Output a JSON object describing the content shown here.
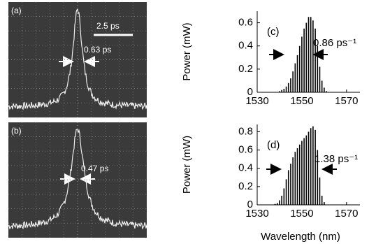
{
  "traces": [
    {
      "label": "(a)",
      "scale": "2.5 ps",
      "width": "0.63 ps"
    },
    {
      "label": "(b)",
      "width": "0.47 ps"
    }
  ],
  "chart_data": [
    {
      "type": "bar",
      "label": "(c)",
      "annotation": "0.86 ps⁻¹",
      "ylabel": "Power (mW)",
      "x": [
        1540,
        1541,
        1542,
        1543,
        1544,
        1545,
        1546,
        1547,
        1548,
        1549,
        1550,
        1551,
        1552,
        1553,
        1554,
        1555,
        1556,
        1557,
        1558,
        1559,
        1560,
        1561
      ],
      "values": [
        0.01,
        0.02,
        0.03,
        0.05,
        0.08,
        0.12,
        0.18,
        0.25,
        0.32,
        0.4,
        0.48,
        0.55,
        0.6,
        0.65,
        0.65,
        0.62,
        0.55,
        0.4,
        0.22,
        0.1,
        0.04,
        0.01
      ],
      "color": "#000000",
      "xlim": [
        1530,
        1576
      ],
      "xticks": [
        1530,
        1550,
        1570
      ],
      "ylim": [
        0,
        0.7
      ],
      "yticks": [
        0,
        0.2,
        0.4,
        0.6
      ]
    },
    {
      "type": "bar",
      "label": "(d)",
      "annotation": "1.38 ps⁻¹",
      "ylabel": "Power (mW)",
      "xlabel": "Wavelength (nm)",
      "x": [
        1538,
        1539,
        1540,
        1541,
        1542,
        1543,
        1544,
        1545,
        1546,
        1547,
        1548,
        1549,
        1550,
        1551,
        1552,
        1553,
        1554,
        1555,
        1556,
        1557,
        1558,
        1559,
        1560
      ],
      "values": [
        0.01,
        0.02,
        0.05,
        0.1,
        0.18,
        0.28,
        0.38,
        0.45,
        0.52,
        0.58,
        0.62,
        0.66,
        0.7,
        0.73,
        0.76,
        0.8,
        0.84,
        0.86,
        0.82,
        0.6,
        0.3,
        0.1,
        0.03
      ],
      "color": "#000000",
      "xlim": [
        1530,
        1576
      ],
      "xticks": [
        1530,
        1550,
        1570
      ],
      "ylim": [
        0,
        0.88
      ],
      "yticks": [
        0,
        0.2,
        0.4,
        0.6,
        0.8
      ]
    }
  ]
}
